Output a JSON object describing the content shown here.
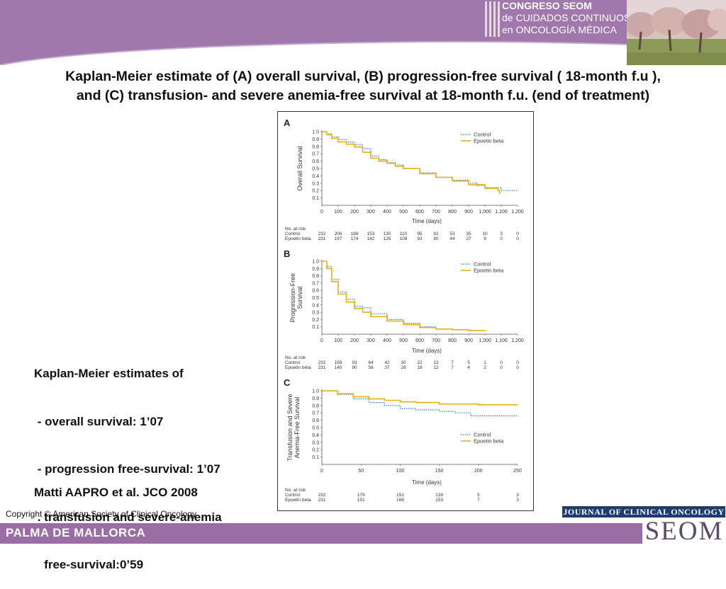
{
  "header": {
    "congress_lines": [
      "CONGRESO SEOM",
      "de CUIDADOS CONTINUOS",
      "en ONCOLOGÍA MÉDICA"
    ],
    "band_color": "#a078ac"
  },
  "title_lines": [
    "Kaplan-Meier estimate of (A) overall survival, (B) progression-free survival ( 18-month f.u ),",
    "and (C) transfusion- and severe anemia-free survival at 18-month f.u. (end of treatment)"
  ],
  "summary": {
    "heading": "Kaplan-Meier estimates of",
    "items": [
      " - overall survival: 1’07",
      " - progression free-survival: 1’07",
      " . transfusion and severe-anemia",
      "   free-survival:0’59"
    ]
  },
  "reference": "Matti AAPRO et al. JCO 2008",
  "copyright": "Copyright  ©  American Society of Clinical Oncology",
  "journal": "JOURNAL OF CLINICAL ONCOLOGY",
  "footer": {
    "left_text": "PALMA DE MALLORCA",
    "logo_text": "SEOM"
  },
  "chart_data": [
    {
      "panel": "A",
      "type": "line",
      "ylabel": "Overall Survival",
      "xlabel": "Time (days)",
      "xlim": [
        0,
        1200
      ],
      "ylim": [
        0,
        1.0
      ],
      "xticks": [
        "0",
        "100",
        "200",
        "300",
        "400",
        "500",
        "600",
        "700",
        "800",
        "900",
        "1,000",
        "1,100",
        "1,200"
      ],
      "xtick_values": [
        0,
        100,
        200,
        300,
        400,
        500,
        600,
        700,
        800,
        900,
        1000,
        1100,
        1200
      ],
      "yticks": [
        "0.1",
        "0.2",
        "0.3",
        "0.4",
        "0.5",
        "0.6",
        "0.7",
        "0.8",
        "0.9",
        "1.0"
      ],
      "legend": [
        "Control",
        "Epoetin beta"
      ],
      "series": [
        {
          "name": "Control",
          "color": "#2b7bd8",
          "style": "dotted",
          "x": [
            0,
            30,
            60,
            100,
            150,
            200,
            250,
            300,
            350,
            400,
            450,
            500,
            600,
            700,
            800,
            900,
            950,
            1000,
            1050,
            1100,
            1200
          ],
          "y": [
            1.0,
            0.97,
            0.93,
            0.89,
            0.86,
            0.82,
            0.77,
            0.67,
            0.62,
            0.58,
            0.55,
            0.5,
            0.44,
            0.38,
            0.34,
            0.3,
            0.27,
            0.24,
            0.24,
            0.2,
            0.2
          ]
        },
        {
          "name": "Epoetin beta",
          "color": "#e8b010",
          "style": "solid",
          "x": [
            0,
            30,
            60,
            100,
            150,
            200,
            250,
            300,
            350,
            400,
            450,
            500,
            600,
            700,
            800,
            900,
            1000,
            1080,
            1090
          ],
          "y": [
            1.0,
            0.96,
            0.91,
            0.86,
            0.83,
            0.79,
            0.72,
            0.64,
            0.6,
            0.57,
            0.53,
            0.5,
            0.43,
            0.38,
            0.33,
            0.28,
            0.23,
            0.2,
            0.15
          ]
        }
      ],
      "at_risk": {
        "label": "No. at risk",
        "rows": [
          {
            "name": "Control",
            "values": [
              "232",
              "206",
              "188",
              "153",
              "130",
              "110",
              "95",
              "82",
              "53",
              "35",
              "10",
              "3",
              "0"
            ]
          },
          {
            "name": "Epoetin beta",
            "values": [
              "231",
              "197",
              "174",
              "142",
              "125",
              "108",
              "93",
              "80",
              "44",
              "27",
              "9",
              "0",
              "0"
            ]
          }
        ]
      }
    },
    {
      "panel": "B",
      "type": "line",
      "ylabel": "Progression-Free Survival",
      "xlabel": "Time (days)",
      "xlim": [
        0,
        1200
      ],
      "ylim": [
        0,
        1.0
      ],
      "xticks": [
        "0",
        "100",
        "200",
        "300",
        "400",
        "500",
        "600",
        "700",
        "800",
        "900",
        "1,000",
        "1,100",
        "1,200"
      ],
      "xtick_values": [
        0,
        100,
        200,
        300,
        400,
        500,
        600,
        700,
        800,
        900,
        1000,
        1100,
        1200
      ],
      "yticks": [
        "0.1",
        "0.2",
        "0.3",
        "0.4",
        "0.5",
        "0.6",
        "0.7",
        "0.8",
        "0.9",
        "1.0"
      ],
      "legend": [
        "Control",
        "Epoetin beta"
      ],
      "series": [
        {
          "name": "Control",
          "color": "#2b7bd8",
          "style": "dotted",
          "x": [
            0,
            30,
            60,
            100,
            150,
            200,
            250,
            300,
            400,
            500,
            600,
            700,
            800,
            900,
            1000
          ],
          "y": [
            1.0,
            0.93,
            0.75,
            0.58,
            0.48,
            0.38,
            0.36,
            0.28,
            0.2,
            0.15,
            0.1,
            0.07,
            0.06,
            0.05,
            0.05
          ]
        },
        {
          "name": "Epoetin beta",
          "color": "#e8b010",
          "style": "solid",
          "x": [
            0,
            30,
            60,
            100,
            150,
            200,
            250,
            300,
            400,
            500,
            600,
            700,
            800,
            900,
            1000
          ],
          "y": [
            1.0,
            0.9,
            0.72,
            0.55,
            0.44,
            0.35,
            0.3,
            0.24,
            0.18,
            0.13,
            0.09,
            0.07,
            0.06,
            0.05,
            0.04
          ]
        }
      ],
      "at_risk": {
        "label": "No. at risk",
        "rows": [
          {
            "name": "Control",
            "values": [
              "232",
              "159",
              "93",
              "64",
              "42",
              "30",
              "22",
              "13",
              "7",
              "5",
              "1",
              "0",
              "0"
            ]
          },
          {
            "name": "Epoetin beta",
            "values": [
              "231",
              "140",
              "90",
              "58",
              "37",
              "28",
              "18",
              "12",
              "7",
              "4",
              "2",
              "0",
              "0"
            ]
          }
        ]
      }
    },
    {
      "panel": "C",
      "type": "line",
      "ylabel": "Transfusion and Severe Anemia-Free Survival",
      "xlabel": "Time (days)",
      "xlim": [
        0,
        250
      ],
      "ylim": [
        0,
        1.0
      ],
      "xticks": [
        "0",
        "50",
        "100",
        "150",
        "200",
        "250"
      ],
      "xtick_values": [
        0,
        50,
        100,
        150,
        200,
        250
      ],
      "yticks": [
        "0.1",
        "0.2",
        "0.3",
        "0.4",
        "0.5",
        "0.6",
        "0.7",
        "0.8",
        "0.9",
        "1.0"
      ],
      "legend": [
        "Control",
        "Epoetin beta"
      ],
      "series": [
        {
          "name": "Control",
          "color": "#2b7bd8",
          "style": "dotted",
          "x": [
            0,
            20,
            40,
            60,
            80,
            100,
            120,
            150,
            170,
            190,
            200,
            250
          ],
          "y": [
            1.0,
            0.95,
            0.89,
            0.84,
            0.8,
            0.76,
            0.74,
            0.72,
            0.7,
            0.66,
            0.66,
            0.66
          ]
        },
        {
          "name": "Epoetin beta",
          "color": "#e8b010",
          "style": "solid",
          "x": [
            0,
            20,
            40,
            60,
            80,
            100,
            120,
            150,
            200,
            250
          ],
          "y": [
            1.0,
            0.96,
            0.92,
            0.89,
            0.87,
            0.85,
            0.84,
            0.82,
            0.81,
            0.81
          ]
        }
      ],
      "at_risk": {
        "label": "No. at risk",
        "rows": [
          {
            "name": "Control",
            "values": [
              "232",
              "179",
              "151",
              "139",
              "5",
              "3"
            ]
          },
          {
            "name": "Epoetin beta",
            "values": [
              "231",
              "191",
              "168",
              "153",
              "7",
              "3"
            ]
          }
        ]
      }
    }
  ]
}
